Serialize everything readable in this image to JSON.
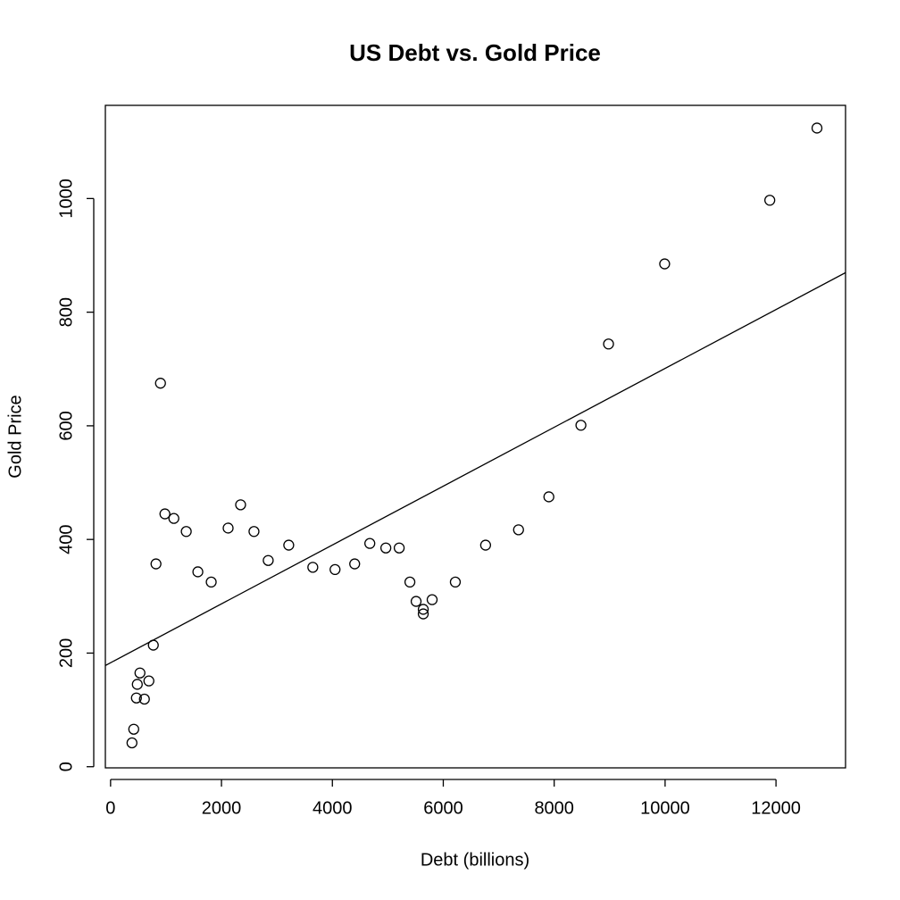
{
  "chart_data": {
    "type": "scatter",
    "title": "US Debt vs. Gold Price",
    "x_label": "Debt (billions)",
    "y_label": "Gold Price",
    "x": [
      386,
      418,
      466,
      482,
      530,
      610,
      691,
      771,
      819,
      900,
      980,
      1141,
      1365,
      1574,
      1815,
      2120,
      2345,
      2586,
      2843,
      3213,
      3647,
      4048,
      4402,
      4675,
      4964,
      5205,
      5398,
      5510,
      5639,
      5639,
      5799,
      6217,
      6763,
      7357,
      7904,
      8482,
      8980,
      9992,
      11888,
      12739
    ],
    "values": [
      42,
      66,
      121,
      145,
      165,
      119,
      151,
      214,
      357,
      675,
      445,
      437,
      414,
      343,
      325,
      420,
      461,
      414,
      363,
      390,
      351,
      347,
      357,
      393,
      385,
      385,
      325,
      291,
      277,
      269,
      294,
      325,
      390,
      417,
      475,
      601,
      744,
      885,
      997,
      1124
    ],
    "color": "#000000",
    "regression": {
      "intercept": 183,
      "slope": 0.0518
    },
    "xlim": [
      -94,
      13254
    ],
    "ylim": [
      -2,
      1164
    ],
    "xticks": [
      0,
      2000,
      4000,
      6000,
      8000,
      10000,
      12000
    ],
    "yticks": [
      0,
      200,
      400,
      600,
      800,
      1000
    ]
  }
}
